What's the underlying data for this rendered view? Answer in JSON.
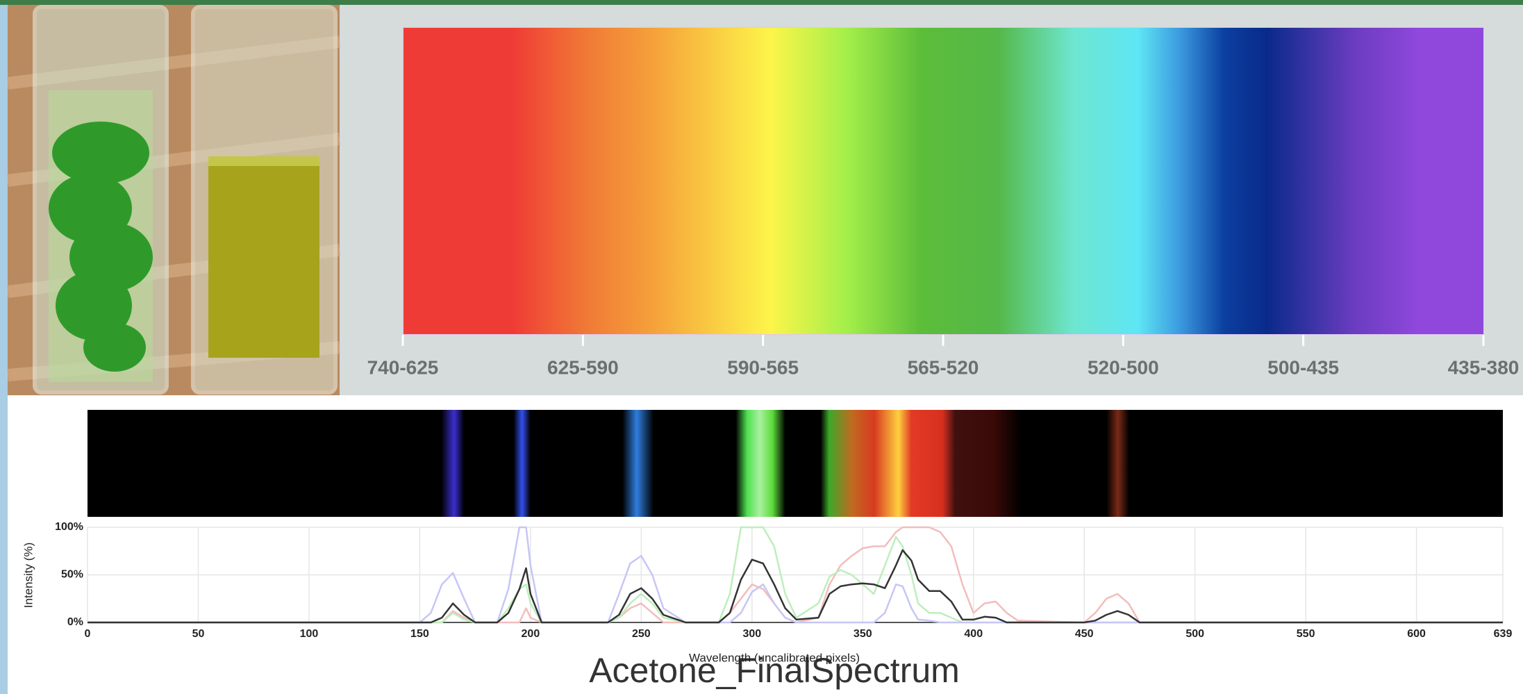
{
  "color_scale": {
    "labels": [
      "740-625",
      "625-590",
      "590-565",
      "565-520",
      "520-500",
      "500-435",
      "435-380"
    ]
  },
  "chart_data": {
    "type": "line",
    "title": "Acetone_FinalSpectrum",
    "x_label": "Wavelength (uncalibrated pixels)",
    "y_label": "Intensity (%)",
    "x": [
      0,
      150,
      155,
      160,
      165,
      170,
      175,
      185,
      190,
      195,
      198,
      200,
      205,
      235,
      240,
      245,
      250,
      255,
      260,
      270,
      285,
      290,
      295,
      300,
      305,
      310,
      315,
      320,
      330,
      335,
      340,
      345,
      350,
      355,
      360,
      365,
      368,
      372,
      375,
      380,
      385,
      390,
      395,
      400,
      405,
      410,
      415,
      420,
      450,
      455,
      460,
      465,
      470,
      475,
      500,
      639
    ],
    "xlim": [
      0,
      639
    ],
    "xticks": [
      0,
      50,
      100,
      150,
      200,
      250,
      300,
      350,
      400,
      450,
      500,
      550,
      600,
      639
    ],
    "ylim": [
      0,
      100
    ],
    "yticks": [
      {
        "value": 0,
        "label": "0%"
      },
      {
        "value": 50,
        "label": "50%"
      },
      {
        "value": 100,
        "label": "100%"
      }
    ],
    "grid": true,
    "series": [
      {
        "color": "#f4bcbc",
        "values": [
          0,
          0,
          0,
          0,
          12,
          5,
          0,
          0,
          0,
          0,
          15,
          5,
          0,
          0,
          5,
          15,
          20,
          10,
          0,
          0,
          0,
          10,
          25,
          40,
          35,
          20,
          5,
          0,
          5,
          40,
          60,
          70,
          78,
          80,
          80,
          95,
          100,
          100,
          100,
          100,
          95,
          80,
          40,
          10,
          20,
          22,
          10,
          2,
          0,
          10,
          25,
          30,
          20,
          0,
          0,
          0
        ]
      },
      {
        "color": "#bdeebd",
        "values": [
          0,
          0,
          0,
          0,
          10,
          3,
          0,
          0,
          15,
          35,
          40,
          20,
          0,
          0,
          5,
          20,
          30,
          20,
          5,
          0,
          0,
          30,
          100,
          100,
          100,
          80,
          30,
          5,
          20,
          48,
          55,
          50,
          40,
          30,
          60,
          90,
          80,
          50,
          20,
          10,
          10,
          5,
          0,
          0,
          0,
          0,
          0,
          0,
          0,
          0,
          0,
          0,
          0,
          0,
          0,
          0
        ]
      },
      {
        "color": "#c6c6f6",
        "values": [
          0,
          0,
          10,
          40,
          52,
          25,
          0,
          0,
          35,
          100,
          100,
          60,
          0,
          0,
          30,
          62,
          70,
          50,
          15,
          0,
          0,
          0,
          10,
          32,
          40,
          20,
          5,
          0,
          0,
          0,
          0,
          0,
          0,
          0,
          10,
          40,
          38,
          15,
          3,
          2,
          0,
          0,
          0,
          0,
          0,
          0,
          0,
          0,
          0,
          0,
          0,
          0,
          0,
          0,
          0,
          0
        ]
      },
      {
        "color": "#333333",
        "values": [
          0,
          0,
          0,
          5,
          20,
          8,
          0,
          0,
          10,
          35,
          57,
          30,
          0,
          0,
          8,
          30,
          36,
          25,
          8,
          0,
          0,
          10,
          45,
          66,
          62,
          40,
          15,
          3,
          5,
          30,
          38,
          40,
          41,
          40,
          36,
          60,
          76,
          65,
          45,
          33,
          33,
          22,
          3,
          3,
          6,
          5,
          0,
          0,
          0,
          2,
          8,
          12,
          8,
          0,
          0,
          0
        ]
      }
    ]
  }
}
